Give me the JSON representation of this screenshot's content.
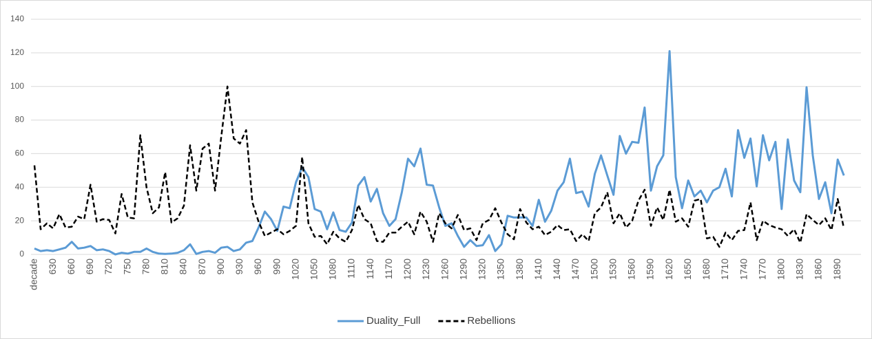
{
  "chart_data": {
    "type": "line",
    "categories": [
      "decade",
      null,
      null,
      "630",
      null,
      null,
      "660",
      null,
      null,
      "690",
      null,
      null,
      "720",
      null,
      null,
      "750",
      null,
      null,
      "780",
      null,
      null,
      "810",
      null,
      null,
      "840",
      null,
      null,
      "870",
      null,
      null,
      "900",
      null,
      null,
      "930",
      null,
      null,
      "960",
      null,
      null,
      "990",
      null,
      null,
      "1020",
      null,
      null,
      "1050",
      null,
      null,
      "1080",
      null,
      null,
      "1110",
      null,
      null,
      "1140",
      null,
      null,
      "1170",
      null,
      null,
      "1200",
      null,
      null,
      "1230",
      null,
      null,
      "1260",
      null,
      null,
      "1290",
      null,
      null,
      "1320",
      null,
      null,
      "1350",
      null,
      null,
      "1380",
      null,
      null,
      "1410",
      null,
      null,
      "1440",
      null,
      null,
      "1470",
      null,
      null,
      "1500",
      null,
      null,
      "1530",
      null,
      null,
      "1560",
      null,
      null,
      "1590",
      null,
      null,
      "1620",
      null,
      null,
      "1650",
      null,
      null,
      "1680",
      null,
      null,
      "1710",
      null,
      null,
      "1740",
      null,
      null,
      "1770",
      null,
      null,
      "1800",
      null,
      null,
      "1830",
      null,
      null,
      "1860",
      null,
      null,
      "1890",
      null
    ],
    "series": [
      {
        "name": "Duality_Full",
        "color": "#5b9bd5",
        "dash": "solid",
        "values": [
          3.5,
          2,
          2.5,
          2,
          3,
          4,
          7.5,
          3.5,
          4,
          5,
          2.5,
          3,
          2,
          0,
          1,
          0.5,
          1.5,
          1.5,
          3.5,
          1.5,
          0.5,
          0.3,
          0.5,
          1,
          2.5,
          6,
          0.3,
          1.5,
          2,
          1,
          4,
          4.5,
          2,
          3,
          7,
          8,
          16,
          25.5,
          21,
          14,
          28.5,
          27.5,
          43,
          52,
          46,
          27,
          25.5,
          15,
          25,
          14.5,
          13.5,
          19,
          41,
          46,
          31.5,
          39,
          24.5,
          17,
          21,
          37,
          57,
          52.5,
          63,
          41.5,
          41,
          28,
          17,
          18.5,
          11,
          4.5,
          8.5,
          5,
          5.5,
          11.5,
          2,
          6,
          23,
          22,
          22,
          22,
          17,
          32.5,
          19.5,
          26,
          38,
          43,
          57,
          36.5,
          37.5,
          28.5,
          48,
          59,
          47,
          35.5,
          70.5,
          60,
          67,
          66.5,
          87.5,
          38,
          52.5,
          59,
          121,
          46,
          27.5,
          44,
          34.5,
          38,
          31,
          38,
          40,
          51,
          34.5,
          74,
          57.5,
          69,
          40.5,
          71,
          56,
          67,
          27,
          68.5,
          44,
          37,
          99.5,
          59,
          33,
          43,
          24.5,
          56.5,
          47
        ]
      },
      {
        "name": "Rebellions",
        "color": "#000000",
        "dash": "dashed",
        "values": [
          53,
          15,
          18.5,
          15.5,
          24,
          16,
          16.5,
          22.5,
          21,
          41.5,
          19.5,
          21,
          20.5,
          12.5,
          36,
          22,
          21.5,
          71,
          40,
          24.5,
          28,
          49,
          19,
          21.5,
          29,
          65,
          38,
          63,
          66,
          38,
          70,
          100,
          69,
          66,
          74,
          31,
          19.5,
          11,
          13,
          15,
          12,
          14,
          17,
          58,
          18.5,
          10.5,
          11,
          6,
          13.5,
          9.5,
          7.5,
          14.5,
          29.5,
          21,
          18.5,
          8,
          7.5,
          13,
          13,
          16.5,
          19.5,
          12,
          25.5,
          19.5,
          7.5,
          24.5,
          18.5,
          15.5,
          23.5,
          14.5,
          15.5,
          8.5,
          18.5,
          20.5,
          27.5,
          19,
          12,
          9,
          27,
          19,
          15,
          16.5,
          11.5,
          13.5,
          17.5,
          14.5,
          15,
          8,
          12,
          8,
          24.5,
          28,
          37,
          18.5,
          24.5,
          16,
          20,
          32,
          38.5,
          17,
          28,
          20.5,
          38.5,
          19.5,
          21.5,
          16.5,
          32,
          33,
          9.5,
          10.5,
          4.5,
          13,
          8.5,
          14,
          14.5,
          31,
          8.5,
          20,
          17.5,
          16,
          15,
          11,
          15,
          7,
          24,
          20.5,
          17.5,
          21.5,
          14.5,
          33,
          15.5
        ]
      }
    ],
    "ylim": [
      0,
      140
    ],
    "yticks": [
      0,
      20,
      40,
      60,
      80,
      100,
      120,
      140
    ],
    "grid": true,
    "legend": "bottom"
  }
}
